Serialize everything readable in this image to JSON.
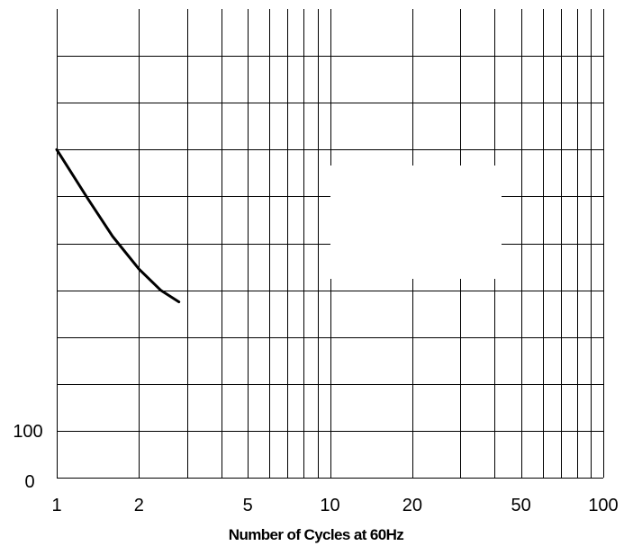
{
  "chart_data": {
    "type": "line",
    "title": "",
    "xlabel": "Number of Cycles at 60Hz",
    "ylabel": "",
    "x_scale": "log",
    "xlim": [
      1,
      100
    ],
    "x_ticks": [
      1,
      2,
      5,
      10,
      20,
      50,
      100
    ],
    "x_tick_labels": [
      "1",
      "2",
      "5",
      "10",
      "20",
      "50",
      "100"
    ],
    "y_ticks": [
      0,
      100
    ],
    "y_tick_labels": [
      "0",
      "100"
    ],
    "ylim": [
      0,
      1000
    ],
    "grid": true,
    "series": [
      {
        "x": [
          1,
          1.3,
          1.6,
          2,
          2.4,
          2.8
        ],
        "y": [
          700,
          595,
          515,
          445,
          400,
          375
        ]
      }
    ],
    "colors": {
      "line": "#000000",
      "grid": "#000000",
      "background": "#ffffff"
    }
  }
}
